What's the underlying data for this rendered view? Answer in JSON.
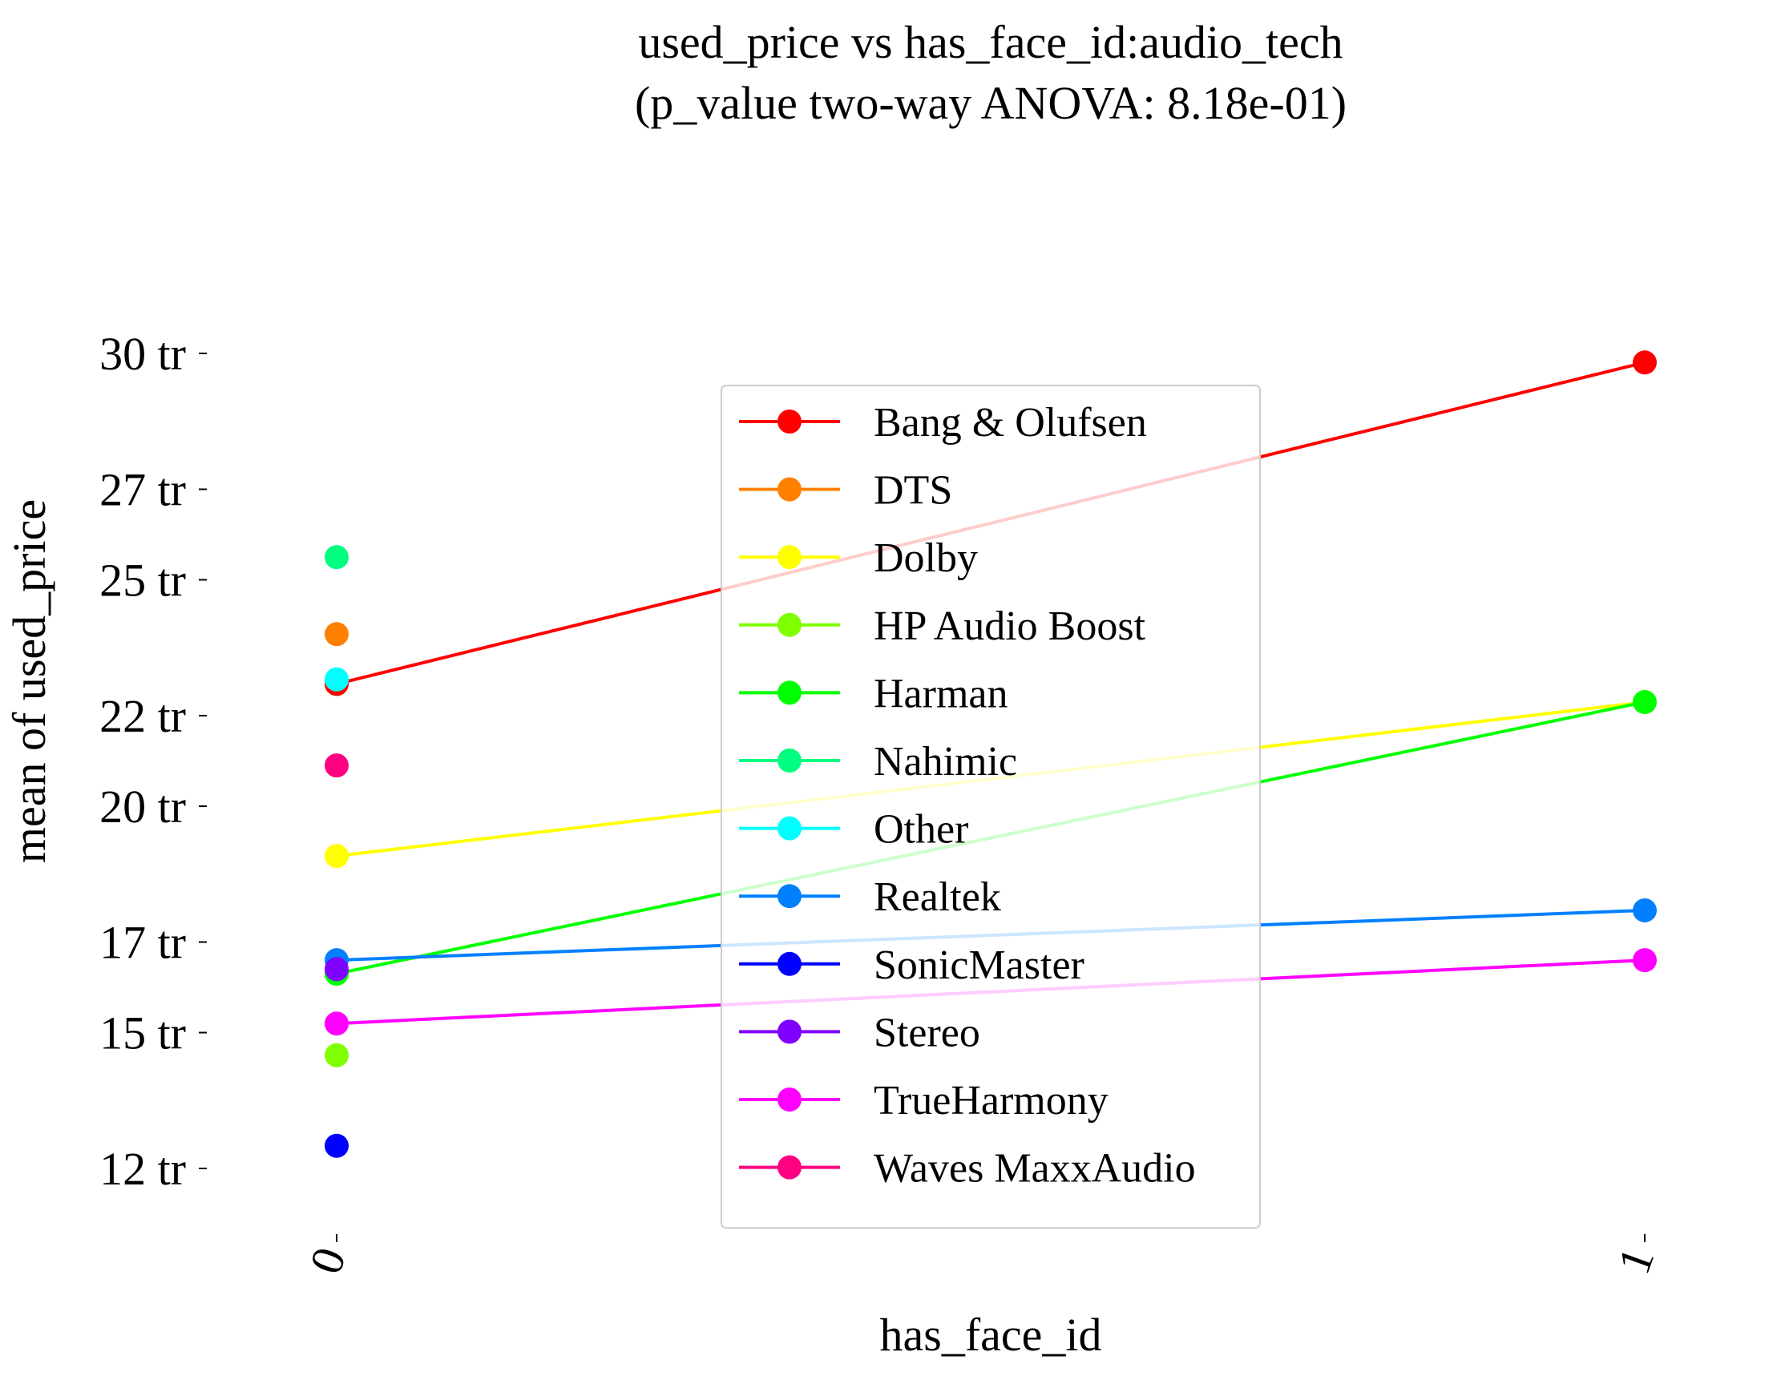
{
  "chart_data": {
    "type": "line",
    "title": "used_price vs has_face_id:audio_tech",
    "subtitle": "(p_value two-way ANOVA: 8.18e-01)",
    "xlabel": "has_face_id",
    "ylabel": "mean of used_price",
    "categories": [
      "0",
      "1"
    ],
    "yticks": [
      {
        "value": 12,
        "label": "12 tr"
      },
      {
        "value": 15,
        "label": "15 tr"
      },
      {
        "value": 17,
        "label": "17 tr"
      },
      {
        "value": 20,
        "label": "20 tr"
      },
      {
        "value": 22,
        "label": "22 tr"
      },
      {
        "value": 25,
        "label": "25 tr"
      },
      {
        "value": 27,
        "label": "27 tr"
      },
      {
        "value": 30,
        "label": "30 tr"
      }
    ],
    "ylim": [
      10.9,
      31.5
    ],
    "grid": false,
    "legend_position": "center",
    "series": [
      {
        "name": "Bang & Olufsen",
        "color": "#ff0000",
        "values": [
          22.7,
          29.8
        ]
      },
      {
        "name": "DTS",
        "color": "#ff8000",
        "values": [
          23.8,
          null
        ]
      },
      {
        "name": "Dolby",
        "color": "#ffff00",
        "values": [
          18.9,
          22.3
        ]
      },
      {
        "name": "HP Audio Boost",
        "color": "#80ff00",
        "values": [
          14.5,
          null
        ]
      },
      {
        "name": "Harman",
        "color": "#00ff00",
        "values": [
          16.3,
          22.3
        ]
      },
      {
        "name": "Nahimic",
        "color": "#00ff80",
        "values": [
          25.5,
          null
        ]
      },
      {
        "name": "Other",
        "color": "#00ffff",
        "values": [
          22.8,
          null
        ]
      },
      {
        "name": "Realtek",
        "color": "#0080ff",
        "values": [
          16.6,
          17.7
        ]
      },
      {
        "name": "SonicMaster",
        "color": "#0000ff",
        "values": [
          12.5,
          null
        ]
      },
      {
        "name": "Stereo",
        "color": "#8000ff",
        "values": [
          16.4,
          null
        ]
      },
      {
        "name": "TrueHarmony",
        "color": "#ff00ff",
        "values": [
          15.2,
          16.6
        ]
      },
      {
        "name": "Waves MaxxAudio",
        "color": "#ff0080",
        "values": [
          20.9,
          null
        ]
      }
    ]
  }
}
